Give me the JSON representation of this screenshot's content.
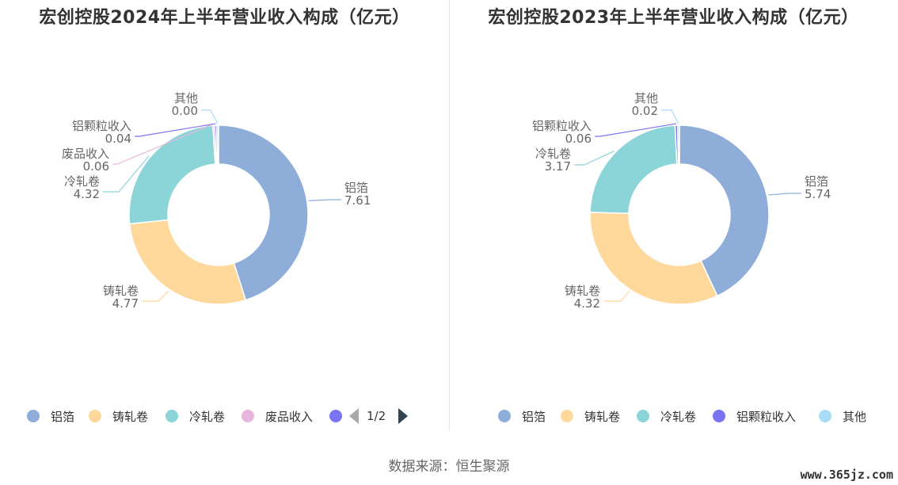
{
  "source": "数据来源：恒生聚源",
  "watermark": "www.365jz.com",
  "pager": {
    "text": "1/2"
  },
  "chart_data": [
    {
      "type": "pie",
      "title": "宏创控股2024年上半年营业收入构成（亿元）",
      "slices": [
        {
          "name": "铝箔",
          "value": 7.61,
          "display": "7.61",
          "color": "#8eadd9"
        },
        {
          "name": "铸轧卷",
          "value": 4.77,
          "display": "4.77",
          "color": "#ffd99b"
        },
        {
          "name": "冷轧卷",
          "value": 4.32,
          "display": "4.32",
          "color": "#8bd5d9"
        },
        {
          "name": "废品收入",
          "value": 0.06,
          "display": "0.06",
          "color": "#e8b6dc"
        },
        {
          "name": "铝颗粒收入",
          "value": 0.04,
          "display": "0.04",
          "color": "#7b74f2"
        },
        {
          "name": "其他",
          "value": 0.0,
          "display": "0.00",
          "color": "#a9dcf6"
        }
      ],
      "legend": [
        "铝箔",
        "铸轧卷",
        "冷轧卷",
        "废品收入",
        ""
      ]
    },
    {
      "type": "pie",
      "title": "宏创控股2023年上半年营业收入构成（亿元）",
      "slices": [
        {
          "name": "铝箔",
          "value": 5.74,
          "display": "5.74",
          "color": "#8eadd9"
        },
        {
          "name": "铸轧卷",
          "value": 4.32,
          "display": "4.32",
          "color": "#ffd99b"
        },
        {
          "name": "冷轧卷",
          "value": 3.17,
          "display": "3.17",
          "color": "#8bd5d9"
        },
        {
          "name": "铝颗粒收入",
          "value": 0.06,
          "display": "0.06",
          "color": "#7b74f2"
        },
        {
          "name": "其他",
          "value": 0.02,
          "display": "0.02",
          "color": "#a9dcf6"
        }
      ],
      "legend": [
        "铝箔",
        "铸轧卷",
        "冷轧卷",
        "铝颗粒收入",
        "其他"
      ]
    }
  ]
}
